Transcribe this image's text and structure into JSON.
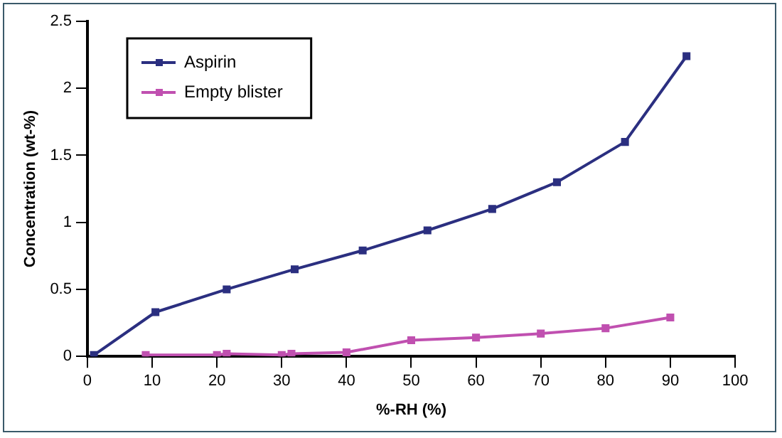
{
  "chart_data": {
    "type": "line",
    "xlabel": "%-RH (%)",
    "ylabel": "Concentration (wt-%)",
    "xlim": [
      0,
      100
    ],
    "xticks": [
      0,
      10,
      20,
      30,
      40,
      50,
      60,
      70,
      80,
      90,
      100
    ],
    "ylim": [
      0,
      2.5
    ],
    "yticks": [
      0,
      0.5,
      1,
      1.5,
      2,
      2.5
    ],
    "grid": false,
    "legend": "top left",
    "marker": "square",
    "line_style": "solid",
    "series": [
      {
        "name": "Aspirin",
        "color": "#2b2f80",
        "x": [
          1,
          10.5,
          21.5,
          32,
          42.5,
          52.5,
          62.5,
          72.5,
          83,
          92.5
        ],
        "values": [
          0.01,
          0.33,
          0.5,
          0.65,
          0.79,
          0.94,
          1.1,
          1.3,
          1.6,
          2.24
        ]
      },
      {
        "name": "Empty blister",
        "color": "#c050b0",
        "x": [
          9,
          20,
          21.5,
          30,
          31.5,
          40,
          50,
          60,
          70,
          80,
          90
        ],
        "values": [
          0.01,
          0.01,
          0.02,
          0.01,
          0.02,
          0.03,
          0.12,
          0.14,
          0.17,
          0.21,
          0.29
        ]
      }
    ]
  }
}
